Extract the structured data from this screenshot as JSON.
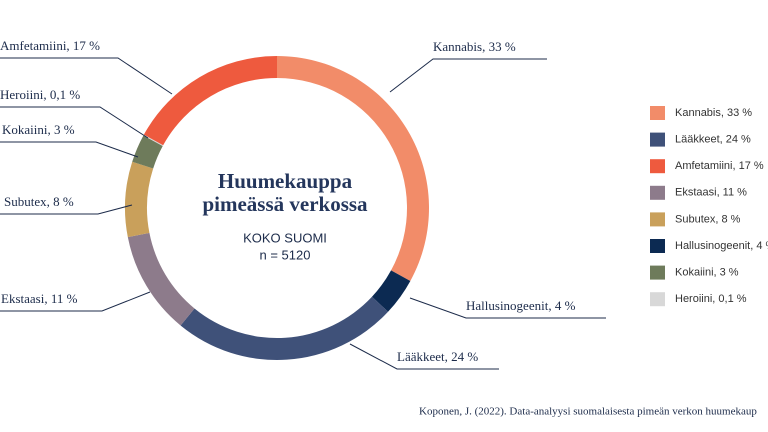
{
  "chart_data": {
    "type": "donut",
    "title": [
      "Huumekauppa",
      "pimeässä verkossa"
    ],
    "subtitle": [
      "KOKO SUOMI",
      "n = 5120"
    ],
    "categories": [
      "Kannabis",
      "Hallusinogeenit",
      "Lääkkeet",
      "Ekstaasi",
      "Subutex",
      "Kokaiini",
      "Heroiini",
      "Amfetamiini"
    ],
    "values": [
      33,
      4,
      24,
      11,
      8,
      3,
      0.1,
      17
    ],
    "value_labels": [
      "Kannabis, 33 %",
      "Hallusinogeenit, 4 %",
      "Lääkkeet, 24 %",
      "Ekstaasi, 11 %",
      "Subutex, 8 %",
      "Kokaiini, 3 %",
      "Heroiini, 0,1 %",
      "Amfetamiini, 17 %"
    ],
    "colors": [
      "#f28c69",
      "#0c2a52",
      "#3f5179",
      "#8d7b8b",
      "#c9a05b",
      "#6e7b5b",
      "#d8d8d8",
      "#ee5a3e"
    ],
    "source": "Koponen, J. (2022). Data-analyysi suomalaisesta pimeän verkon huumekaup"
  }
}
